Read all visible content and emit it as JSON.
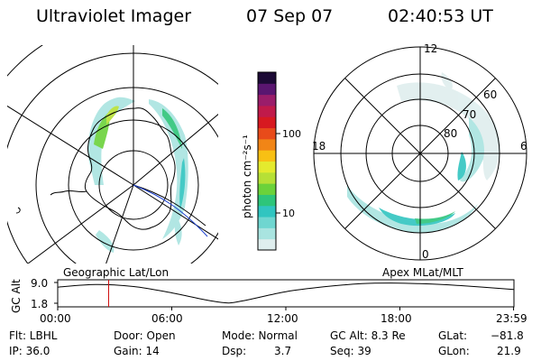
{
  "header": {
    "instrument": "Ultraviolet Imager",
    "date": "07 Sep 07",
    "time": "02:40:53 UT"
  },
  "geo_panel": {
    "label": "Geographic Lat/Lon"
  },
  "mlt_panel": {
    "label": "Apex MLat/MLT",
    "mlt_labels": [
      "12",
      "18",
      "6",
      "0"
    ],
    "mlat_labels": [
      "60",
      "70",
      "80"
    ]
  },
  "colorbar": {
    "unit_label": "photon cm⁻²s⁻¹",
    "ticks": [
      "100",
      "10"
    ],
    "colors": [
      "#dfeeee",
      "#a9e4e0",
      "#6fd6d0",
      "#31c5c0",
      "#2ec57a",
      "#6bd23a",
      "#b6e036",
      "#e4ea2e",
      "#f8c014",
      "#f18516",
      "#e84b1a",
      "#d71920",
      "#c01a4a",
      "#9a1d6a",
      "#5a1670",
      "#1c0a35"
    ]
  },
  "altitude_plot": {
    "ylabel": "GC Alt",
    "yticks": [
      "9.0",
      "1.8"
    ],
    "xticks": [
      "00:00",
      "06:00",
      "12:00",
      "18:00",
      "23:59"
    ],
    "series": [
      {
        "x": 0,
        "y": 7.4
      },
      {
        "x": 2,
        "y": 8.3
      },
      {
        "x": 4,
        "y": 7.6
      },
      {
        "x": 6,
        "y": 5.4
      },
      {
        "x": 8,
        "y": 2.7
      },
      {
        "x": 9,
        "y": 1.9
      },
      {
        "x": 10,
        "y": 3.0
      },
      {
        "x": 12,
        "y": 5.8
      },
      {
        "x": 14,
        "y": 7.5
      },
      {
        "x": 16,
        "y": 8.6
      },
      {
        "x": 17.5,
        "y": 8.8
      },
      {
        "x": 19,
        "y": 8.6
      },
      {
        "x": 21,
        "y": 8.0
      },
      {
        "x": 23.98,
        "y": 6.6
      }
    ],
    "marker_hour": 2.68,
    "xlim": [
      0,
      24
    ],
    "ylim": [
      1.8,
      9.0
    ]
  },
  "info": {
    "flt": "Flt: LBHL",
    "ip": "IP: 36.0",
    "door": "Door: Open",
    "gain": "Gain: 14",
    "mode": "Mode: Normal",
    "dsp_label": "Dsp:",
    "dsp_value": "3.7",
    "gc_alt": "GC Alt: 8.3 Re",
    "seq": "Seq: 39",
    "glat_label": "GLat:",
    "glat_value": "−81.8",
    "glon_label": "GLon:",
    "glon_value": "21.9"
  }
}
